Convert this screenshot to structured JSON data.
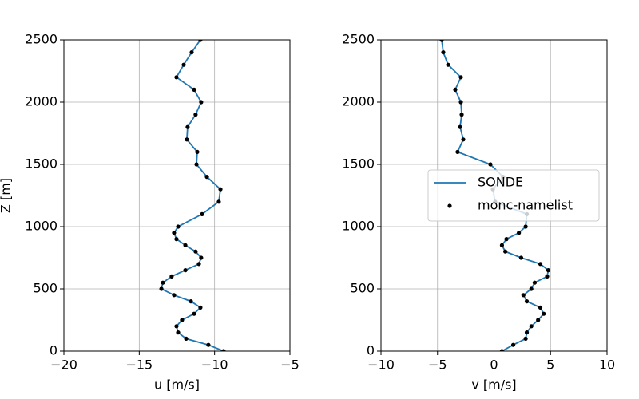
{
  "chart_data": [
    {
      "type": "line",
      "xlabel": "u [m/s]",
      "ylabel": "Z [m]",
      "xlim": [
        -20,
        -5
      ],
      "ylim": [
        0,
        2500
      ],
      "xticks": [
        {
          "value": -20,
          "label": "−20"
        },
        {
          "value": -15,
          "label": "−15"
        },
        {
          "value": -10,
          "label": "−10"
        },
        {
          "value": -5,
          "label": "−5"
        }
      ],
      "yticks": [
        0,
        500,
        1000,
        1500,
        2000,
        2500
      ],
      "grid": true,
      "z": [
        0,
        50,
        100,
        150,
        200,
        250,
        300,
        350,
        400,
        450,
        500,
        550,
        600,
        650,
        700,
        750,
        800,
        850,
        900,
        950,
        1000,
        1100,
        1200,
        1300,
        1400,
        1500,
        1600,
        1700,
        1800,
        1900,
        2000,
        2100,
        2200,
        2300,
        2400,
        2500
      ],
      "series": [
        {
          "name": "SONDE",
          "color": "#1f77b4",
          "marker": "line",
          "values": [
            -9.4,
            -10.41,
            -11.89,
            -12.42,
            -12.53,
            -12.16,
            -11.36,
            -10.94,
            -11.57,
            -12.69,
            -13.53,
            -13.43,
            -12.85,
            -11.94,
            -11.04,
            -10.89,
            -11.26,
            -11.94,
            -12.53,
            -12.69,
            -12.42,
            -10.83,
            -9.72,
            -9.61,
            -10.51,
            -11.2,
            -11.15,
            -11.84,
            -11.79,
            -11.26,
            -10.89,
            -11.36,
            -12.53,
            -12.05,
            -11.52,
            -10.94
          ]
        },
        {
          "name": "monc-namelist",
          "color": "#000000",
          "marker": "dot",
          "values": [
            -9.4,
            -10.41,
            -11.89,
            -12.42,
            -12.53,
            -12.16,
            -11.36,
            -10.94,
            -11.57,
            -12.69,
            -13.53,
            -13.43,
            -12.85,
            -11.94,
            -11.04,
            -10.89,
            -11.26,
            -11.94,
            -12.53,
            -12.69,
            -12.42,
            -10.83,
            -9.72,
            -9.61,
            -10.51,
            -11.2,
            -11.15,
            -11.84,
            -11.79,
            -11.26,
            -10.89,
            -11.36,
            -12.53,
            -12.05,
            -11.52,
            -10.94
          ]
        }
      ]
    },
    {
      "type": "line",
      "xlabel": "v [m/s]",
      "xlim": [
        -10,
        10
      ],
      "ylim": [
        0,
        2500
      ],
      "xticks": [
        {
          "value": -10,
          "label": "−10"
        },
        {
          "value": -5,
          "label": "−5"
        },
        0,
        5,
        10
      ],
      "yticks": [
        0,
        500,
        1000,
        1500,
        2000,
        2500
      ],
      "grid": true,
      "legend": "center right",
      "z": [
        0,
        50,
        100,
        150,
        200,
        250,
        300,
        350,
        400,
        450,
        500,
        550,
        600,
        650,
        700,
        750,
        800,
        850,
        900,
        950,
        1000,
        1100,
        1200,
        1300,
        1400,
        1500,
        1600,
        1700,
        1800,
        1900,
        2000,
        2100,
        2200,
        2300,
        2400,
        2500
      ],
      "series": [
        {
          "name": "SONDE",
          "color": "#1f77b4",
          "marker": "line",
          "values": [
            0.7,
            1.7,
            2.8,
            2.9,
            3.3,
            3.9,
            4.4,
            4.1,
            2.9,
            2.6,
            3.3,
            3.6,
            4.7,
            4.8,
            4.1,
            2.4,
            1.0,
            0.7,
            1.1,
            2.2,
            2.8,
            2.9,
            0.1,
            -0.1,
            0.8,
            -0.32,
            -3.22,
            -2.72,
            -3.0,
            -2.86,
            -2.93,
            -3.43,
            -2.93,
            -4.06,
            -4.49,
            -4.63
          ]
        },
        {
          "name": "monc-namelist",
          "color": "#000000",
          "marker": "dot",
          "values": [
            0.7,
            1.7,
            2.8,
            2.9,
            3.3,
            3.9,
            4.4,
            4.1,
            2.9,
            2.6,
            3.3,
            3.6,
            4.7,
            4.8,
            4.1,
            2.4,
            1.0,
            0.7,
            1.1,
            2.2,
            2.8,
            2.9,
            0.1,
            -0.1,
            0.8,
            -0.32,
            -3.22,
            -2.72,
            -3.0,
            -2.86,
            -2.93,
            -3.43,
            -2.93,
            -4.06,
            -4.49,
            -4.63
          ]
        }
      ]
    }
  ]
}
